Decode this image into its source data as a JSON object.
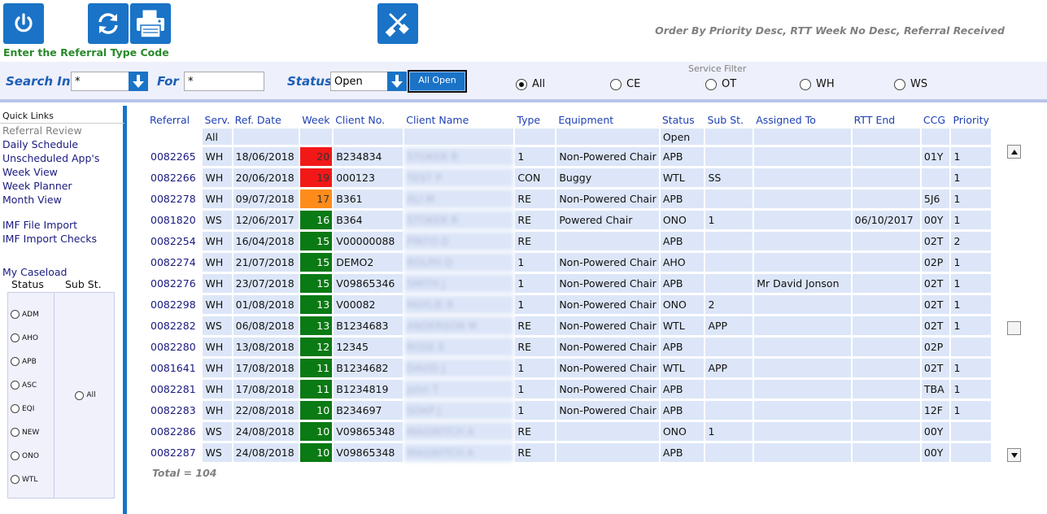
{
  "toolbar": {
    "instruction": "Enter the Referral Type Code",
    "order_by": "Order By Priority Desc, RTT Week No Desc, Referral Received",
    "icons": [
      "power-icon",
      "refresh-icon",
      "printer-icon",
      "tools-icon"
    ]
  },
  "filters": {
    "search_in_label": "Search In",
    "search_in_value": "*",
    "for_label": "For",
    "for_value": "*",
    "status_label": "Status",
    "status_value": "Open",
    "all_open_label": "All Open",
    "service_filter_title": "Service Filter",
    "service_options": [
      {
        "label": "All",
        "checked": true
      },
      {
        "label": "CE",
        "checked": false
      },
      {
        "label": "OT",
        "checked": false
      },
      {
        "label": "WH",
        "checked": false
      },
      {
        "label": "WS",
        "checked": false
      }
    ]
  },
  "sidebar": {
    "quick_links_title": "Quick Links",
    "links": [
      {
        "label": "Referral Review",
        "disabled": true
      },
      {
        "label": "Daily Schedule",
        "disabled": false
      },
      {
        "label": "Unscheduled App's",
        "disabled": false
      },
      {
        "label": "Week View",
        "disabled": false
      },
      {
        "label": "Week Planner",
        "disabled": false
      },
      {
        "label": "Month View",
        "disabled": false
      }
    ],
    "import_links": [
      {
        "label": "IMF File Import"
      },
      {
        "label": "IMF Import Checks"
      }
    ],
    "caseload_title": "My Caseload",
    "status_header": "Status",
    "sub_header": "Sub St.",
    "status_options": [
      "ADM",
      "AHO",
      "APB",
      "ASC",
      "EQI",
      "NEW",
      "ONO",
      "WTL"
    ],
    "sub_option": "All"
  },
  "grid": {
    "columns": [
      "Referral",
      "Serv.",
      "Ref. Date",
      "Week",
      "Client No.",
      "Client Name",
      "Type",
      "Equipment",
      "Status",
      "Sub St.",
      "Assigned To",
      "RTT End",
      "CCG",
      "Priority"
    ],
    "filters": {
      "serv": "All",
      "status": "Open"
    },
    "rows": [
      {
        "referral": "0082265",
        "serv": "WH",
        "date": "18/06/2018",
        "week": "20",
        "week_color": "red",
        "client_no": "B234834",
        "name": "STOKER R",
        "type": "1",
        "equipment": "Non-Powered Chair",
        "status": "APB",
        "sub": "",
        "assigned": "",
        "rtt_end": "",
        "ccg": "01Y",
        "priority": "1"
      },
      {
        "referral": "0082266",
        "serv": "WH",
        "date": "20/06/2018",
        "week": "19",
        "week_color": "red",
        "client_no": "000123",
        "name": "TEST P",
        "type": "CON",
        "equipment": "Buggy",
        "status": "WTL",
        "sub": "SS",
        "assigned": "",
        "rtt_end": "",
        "ccg": "",
        "priority": "1"
      },
      {
        "referral": "0082278",
        "serv": "WH",
        "date": "09/07/2018",
        "week": "17",
        "week_color": "orange",
        "client_no": "B361",
        "name": "ALI M",
        "type": "RE",
        "equipment": "Non-Powered Chair",
        "status": "APB",
        "sub": "",
        "assigned": "",
        "rtt_end": "",
        "ccg": "5J6",
        "priority": "1"
      },
      {
        "referral": "0081820",
        "serv": "WS",
        "date": "12/06/2017",
        "week": "16",
        "week_color": "green",
        "client_no": "B364",
        "name": "STOKER R",
        "type": "RE",
        "equipment": "Powered Chair",
        "status": "ONO",
        "sub": "1",
        "assigned": "",
        "rtt_end": "06/10/2017",
        "ccg": "00Y",
        "priority": "1"
      },
      {
        "referral": "0082254",
        "serv": "WH",
        "date": "16/04/2018",
        "week": "15",
        "week_color": "green",
        "client_no": "V00000088",
        "name": "PINTO D",
        "type": "RE",
        "equipment": "",
        "status": "APB",
        "sub": "",
        "assigned": "",
        "rtt_end": "",
        "ccg": "02T",
        "priority": "2"
      },
      {
        "referral": "0082274",
        "serv": "WH",
        "date": "21/07/2018",
        "week": "15",
        "week_color": "green",
        "client_no": "DEMO2",
        "name": "ROLPH D",
        "type": "1",
        "equipment": "Non-Powered Chair",
        "status": "AHO",
        "sub": "",
        "assigned": "",
        "rtt_end": "",
        "ccg": "02P",
        "priority": "1"
      },
      {
        "referral": "0082276",
        "serv": "WH",
        "date": "23/07/2018",
        "week": "15",
        "week_color": "green",
        "client_no": "V09865346",
        "name": "SMITH J",
        "type": "1",
        "equipment": "Non-Powered Chair",
        "status": "APB",
        "sub": "",
        "assigned": "Mr David Jonson",
        "rtt_end": "",
        "ccg": "02T",
        "priority": "1"
      },
      {
        "referral": "0082298",
        "serv": "WH",
        "date": "01/08/2018",
        "week": "13",
        "week_color": "green",
        "client_no": "V00082",
        "name": "MAYLIE R",
        "type": "1",
        "equipment": "Non-Powered Chair",
        "status": "ONO",
        "sub": "2",
        "assigned": "",
        "rtt_end": "",
        "ccg": "02T",
        "priority": "1"
      },
      {
        "referral": "0082282",
        "serv": "WS",
        "date": "06/08/2018",
        "week": "13",
        "week_color": "green",
        "client_no": "B1234683",
        "name": "ANDERSON M",
        "type": "RE",
        "equipment": "Non-Powered Chair",
        "status": "WTL",
        "sub": "APP",
        "assigned": "",
        "rtt_end": "",
        "ccg": "02T",
        "priority": "1"
      },
      {
        "referral": "0082280",
        "serv": "WH",
        "date": "13/08/2018",
        "week": "12",
        "week_color": "green",
        "client_no": "12345",
        "name": "ROSE E",
        "type": "RE",
        "equipment": "Non-Powered Chair",
        "status": "APB",
        "sub": "",
        "assigned": "",
        "rtt_end": "",
        "ccg": "02P",
        "priority": ""
      },
      {
        "referral": "0081641",
        "serv": "WH",
        "date": "17/08/2018",
        "week": "11",
        "week_color": "green",
        "client_no": "B1234682",
        "name": "DAVID J",
        "type": "1",
        "equipment": "Non-Powered Chair",
        "status": "WTL",
        "sub": "APP",
        "assigned": "",
        "rtt_end": "",
        "ccg": "02T",
        "priority": "1"
      },
      {
        "referral": "0082281",
        "serv": "WH",
        "date": "17/08/2018",
        "week": "11",
        "week_color": "green",
        "client_no": "B1234819",
        "name": "John T",
        "type": "1",
        "equipment": "Non-Powered Chair",
        "status": "APB",
        "sub": "",
        "assigned": "",
        "rtt_end": "",
        "ccg": "TBA",
        "priority": "1"
      },
      {
        "referral": "0082283",
        "serv": "WH",
        "date": "22/08/2018",
        "week": "10",
        "week_color": "green",
        "client_no": "B234697",
        "name": "SOAP J",
        "type": "1",
        "equipment": "Non-Powered Chair",
        "status": "APB",
        "sub": "",
        "assigned": "",
        "rtt_end": "",
        "ccg": "12F",
        "priority": "1"
      },
      {
        "referral": "0082286",
        "serv": "WS",
        "date": "24/08/2018",
        "week": "10",
        "week_color": "green",
        "client_no": "V09865348",
        "name": "MAGWITCH A",
        "type": "RE",
        "equipment": "",
        "status": "ONO",
        "sub": "1",
        "assigned": "",
        "rtt_end": "",
        "ccg": "00Y",
        "priority": ""
      },
      {
        "referral": "0082287",
        "serv": "WS",
        "date": "24/08/2018",
        "week": "10",
        "week_color": "green",
        "client_no": "V09865348",
        "name": "MAGWITCH A",
        "type": "RE",
        "equipment": "",
        "status": "APB",
        "sub": "",
        "assigned": "",
        "rtt_end": "",
        "ccg": "00Y",
        "priority": ""
      }
    ],
    "total": "Total = 104"
  }
}
